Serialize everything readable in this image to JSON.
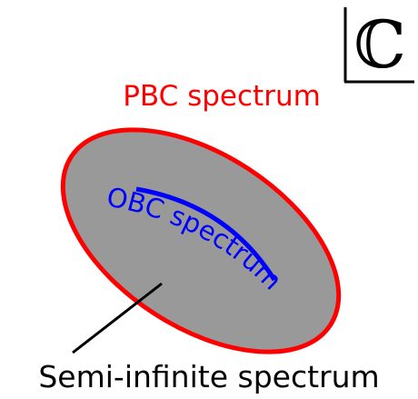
{
  "labels": {
    "complex_plane": "ℂ",
    "pbc": "PBC spectrum",
    "obc": "OBC spectrum",
    "semi_infinite": "Semi-infinite spectrum"
  }
}
